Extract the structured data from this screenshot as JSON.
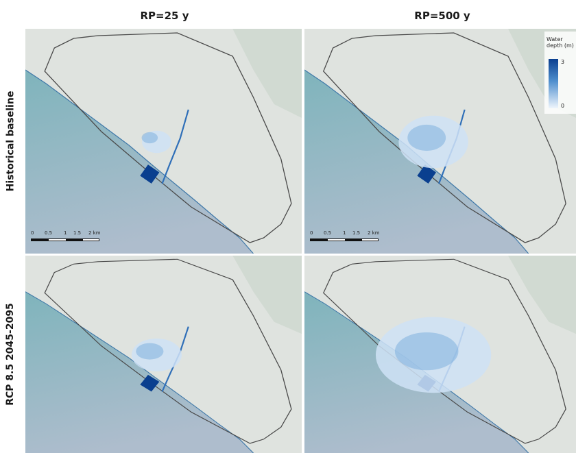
{
  "figure": {
    "columns": [
      {
        "title": "RP=25 y"
      },
      {
        "title": "RP=500 y"
      }
    ],
    "rows": [
      {
        "title": "Historical baseline"
      },
      {
        "title": "RCP 8.5 2045-2095"
      }
    ]
  },
  "legend": {
    "title": "Water depth (m)",
    "max": "3",
    "min": "0",
    "color_max": "#0a3f8f",
    "color_min": "#eef5fc"
  },
  "scalebar": {
    "labels": [
      "0",
      "0.5",
      "1",
      "1.5",
      "2 km"
    ]
  },
  "colors": {
    "sea": "#8fb3bd",
    "land": "#dfe3df",
    "flood_light": "#cfe2f6",
    "flood_mid": "#7fb0de",
    "flood_dark": "#0a3f8f",
    "boundary": "#4a4a4a"
  },
  "flood_extent": {
    "historical_rp25": 0.15,
    "historical_rp500": 0.55,
    "rcp85_rp25": 0.35,
    "rcp85_rp500": 1.0
  }
}
